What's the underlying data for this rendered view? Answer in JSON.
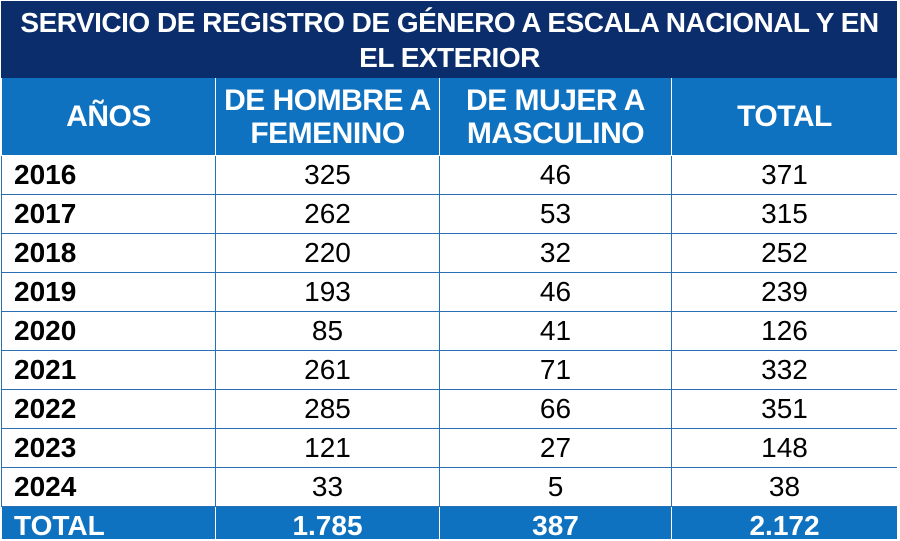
{
  "chart_data": {
    "type": "table",
    "title": "SERVICIO DE REGISTRO DE GÉNERO A ESCALA NACIONAL Y EN EL EXTERIOR",
    "columns": [
      "AÑOS",
      "DE HOMBRE A FEMENINO",
      "DE MUJER A MASCULINO",
      "TOTAL"
    ],
    "rows": [
      {
        "year": "2016",
        "hombre_a_femenino": "325",
        "mujer_a_masculino": "46",
        "total": "371"
      },
      {
        "year": "2017",
        "hombre_a_femenino": "262",
        "mujer_a_masculino": "53",
        "total": "315"
      },
      {
        "year": "2018",
        "hombre_a_femenino": "220",
        "mujer_a_masculino": "32",
        "total": "252"
      },
      {
        "year": "2019",
        "hombre_a_femenino": "193",
        "mujer_a_masculino": "46",
        "total": "239"
      },
      {
        "year": "2020",
        "hombre_a_femenino": "85",
        "mujer_a_masculino": "41",
        "total": "126"
      },
      {
        "year": "2021",
        "hombre_a_femenino": "261",
        "mujer_a_masculino": "71",
        "total": "332"
      },
      {
        "year": "2022",
        "hombre_a_femenino": "285",
        "mujer_a_masculino": "66",
        "total": "351"
      },
      {
        "year": "2023",
        "hombre_a_femenino": "121",
        "mujer_a_masculino": "27",
        "total": "148"
      },
      {
        "year": "2024",
        "hombre_a_femenino": "33",
        "mujer_a_masculino": "5",
        "total": "38"
      }
    ],
    "totals": {
      "label": "TOTAL",
      "hombre_a_femenino": "1.785",
      "mujer_a_masculino": "387",
      "total": "2.172"
    }
  },
  "colors": {
    "title_background": "#0b2d6b",
    "header_background": "#0e72c0",
    "header_text": "#ffffff",
    "grid_line": "#2b6fb3"
  }
}
